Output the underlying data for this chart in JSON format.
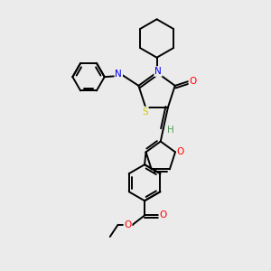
{
  "background_color": "#ebebeb",
  "atom_colors": {
    "N": "#0000ee",
    "O": "#ff0000",
    "S": "#cccc00",
    "C": "#000000",
    "H": "#5a9a5a"
  },
  "bond_color": "#000000",
  "bond_width": 1.4,
  "xlim": [
    0,
    10
  ],
  "ylim": [
    0,
    10
  ]
}
